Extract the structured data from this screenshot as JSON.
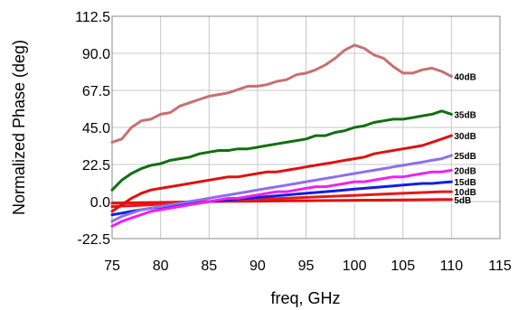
{
  "chart_data": {
    "type": "line",
    "title": "",
    "xlabel": "freq, GHz",
    "ylabel": "Normalized Phase (deg)",
    "xlim": [
      75,
      115
    ],
    "ylim": [
      -22.5,
      112.5
    ],
    "xticks": [
      "75",
      "80",
      "85",
      "90",
      "95",
      "100",
      "105",
      "110",
      "115"
    ],
    "yticks": [
      "-22.5",
      "0.0",
      "22.5",
      "45.0",
      "67.5",
      "90.0",
      "112.5"
    ],
    "grid": true,
    "series": [
      {
        "name": "40dB",
        "color": "#c87070",
        "points": [
          [
            75,
            36
          ],
          [
            76,
            38
          ],
          [
            77,
            45
          ],
          [
            78,
            49
          ],
          [
            79,
            50
          ],
          [
            80,
            53
          ],
          [
            81,
            54
          ],
          [
            82,
            58
          ],
          [
            83,
            60
          ],
          [
            84,
            62
          ],
          [
            85,
            64
          ],
          [
            86,
            65
          ],
          [
            87,
            66
          ],
          [
            88,
            68
          ],
          [
            89,
            70
          ],
          [
            90,
            70
          ],
          [
            91,
            71
          ],
          [
            92,
            73
          ],
          [
            93,
            74
          ],
          [
            94,
            77
          ],
          [
            95,
            78
          ],
          [
            96,
            80
          ],
          [
            97,
            83
          ],
          [
            98,
            87
          ],
          [
            99,
            92
          ],
          [
            100,
            95
          ],
          [
            101,
            93
          ],
          [
            102,
            89
          ],
          [
            103,
            87
          ],
          [
            104,
            82
          ],
          [
            105,
            78
          ],
          [
            106,
            78
          ],
          [
            107,
            80
          ],
          [
            108,
            81
          ],
          [
            109,
            79
          ],
          [
            110,
            76
          ]
        ]
      },
      {
        "name": "35dB",
        "color": "#107010",
        "points": [
          [
            75,
            7
          ],
          [
            76,
            13
          ],
          [
            77,
            17
          ],
          [
            78,
            20
          ],
          [
            79,
            22
          ],
          [
            80,
            23
          ],
          [
            81,
            25
          ],
          [
            82,
            26
          ],
          [
            83,
            27
          ],
          [
            84,
            29
          ],
          [
            85,
            30
          ],
          [
            86,
            31
          ],
          [
            87,
            31
          ],
          [
            88,
            32
          ],
          [
            89,
            32
          ],
          [
            90,
            33
          ],
          [
            91,
            34
          ],
          [
            92,
            35
          ],
          [
            93,
            36
          ],
          [
            94,
            37
          ],
          [
            95,
            38
          ],
          [
            96,
            40
          ],
          [
            97,
            40
          ],
          [
            98,
            42
          ],
          [
            99,
            43
          ],
          [
            100,
            45
          ],
          [
            101,
            46
          ],
          [
            102,
            48
          ],
          [
            103,
            49
          ],
          [
            104,
            50
          ],
          [
            105,
            50
          ],
          [
            106,
            51
          ],
          [
            107,
            52
          ],
          [
            108,
            53
          ],
          [
            109,
            55
          ],
          [
            110,
            53
          ]
        ]
      },
      {
        "name": "30dB",
        "color": "#e01010",
        "points": [
          [
            75,
            -6
          ],
          [
            76,
            -2
          ],
          [
            77,
            2
          ],
          [
            78,
            5
          ],
          [
            79,
            7
          ],
          [
            80,
            8
          ],
          [
            81,
            9
          ],
          [
            82,
            10
          ],
          [
            83,
            11
          ],
          [
            84,
            12
          ],
          [
            85,
            13
          ],
          [
            86,
            14
          ],
          [
            87,
            15
          ],
          [
            88,
            15
          ],
          [
            89,
            16
          ],
          [
            90,
            17
          ],
          [
            91,
            18
          ],
          [
            92,
            18
          ],
          [
            93,
            19
          ],
          [
            94,
            20
          ],
          [
            95,
            21
          ],
          [
            96,
            22
          ],
          [
            97,
            23
          ],
          [
            98,
            24
          ],
          [
            99,
            25
          ],
          [
            100,
            26
          ],
          [
            101,
            27
          ],
          [
            102,
            29
          ],
          [
            103,
            30
          ],
          [
            104,
            31
          ],
          [
            105,
            32
          ],
          [
            106,
            33
          ],
          [
            107,
            34
          ],
          [
            108,
            36
          ],
          [
            109,
            38
          ],
          [
            110,
            40
          ]
        ]
      },
      {
        "name": "25dB",
        "color": "#8c6ff0",
        "points": [
          [
            75,
            -12
          ],
          [
            76,
            -9
          ],
          [
            77,
            -7
          ],
          [
            78,
            -5
          ],
          [
            79,
            -4
          ],
          [
            80,
            -3
          ],
          [
            81,
            -2
          ],
          [
            82,
            -1
          ],
          [
            83,
            0
          ],
          [
            84,
            1
          ],
          [
            85,
            2
          ],
          [
            86,
            3
          ],
          [
            87,
            4
          ],
          [
            88,
            5
          ],
          [
            89,
            6
          ],
          [
            90,
            7
          ],
          [
            91,
            8
          ],
          [
            92,
            9
          ],
          [
            93,
            10
          ],
          [
            94,
            11
          ],
          [
            95,
            12
          ],
          [
            96,
            13
          ],
          [
            97,
            14
          ],
          [
            98,
            15
          ],
          [
            99,
            16
          ],
          [
            100,
            17
          ],
          [
            101,
            18
          ],
          [
            102,
            19
          ],
          [
            103,
            20
          ],
          [
            104,
            21
          ],
          [
            105,
            22
          ],
          [
            106,
            23
          ],
          [
            107,
            24
          ],
          [
            108,
            25
          ],
          [
            109,
            26
          ],
          [
            110,
            28
          ]
        ]
      },
      {
        "name": "20dB",
        "color": "#f020f0",
        "points": [
          [
            75,
            -15
          ],
          [
            76,
            -12
          ],
          [
            77,
            -10
          ],
          [
            78,
            -8
          ],
          [
            79,
            -6
          ],
          [
            80,
            -5
          ],
          [
            81,
            -4
          ],
          [
            82,
            -3
          ],
          [
            83,
            -2
          ],
          [
            84,
            -1
          ],
          [
            85,
            0
          ],
          [
            86,
            1
          ],
          [
            87,
            2
          ],
          [
            88,
            2
          ],
          [
            89,
            3
          ],
          [
            90,
            4
          ],
          [
            91,
            5
          ],
          [
            92,
            6
          ],
          [
            93,
            6
          ],
          [
            94,
            7
          ],
          [
            95,
            8
          ],
          [
            96,
            9
          ],
          [
            97,
            9
          ],
          [
            98,
            10
          ],
          [
            99,
            11
          ],
          [
            100,
            12
          ],
          [
            101,
            12
          ],
          [
            102,
            13
          ],
          [
            103,
            14
          ],
          [
            104,
            15
          ],
          [
            105,
            15
          ],
          [
            106,
            16
          ],
          [
            107,
            17
          ],
          [
            108,
            18
          ],
          [
            109,
            18
          ],
          [
            110,
            19
          ]
        ]
      },
      {
        "name": "15dB",
        "color": "#1020e0",
        "points": [
          [
            75,
            -8
          ],
          [
            76,
            -7
          ],
          [
            77,
            -6
          ],
          [
            78,
            -5
          ],
          [
            79,
            -4
          ],
          [
            80,
            -3.5
          ],
          [
            81,
            -3
          ],
          [
            82,
            -2
          ],
          [
            83,
            -1.5
          ],
          [
            84,
            -1
          ],
          [
            85,
            0
          ],
          [
            86,
            0.5
          ],
          [
            87,
            1
          ],
          [
            88,
            1.5
          ],
          [
            89,
            2
          ],
          [
            90,
            2.5
          ],
          [
            91,
            3
          ],
          [
            92,
            3.5
          ],
          [
            93,
            4
          ],
          [
            94,
            4.5
          ],
          [
            95,
            5
          ],
          [
            96,
            5.5
          ],
          [
            97,
            6
          ],
          [
            98,
            6.5
          ],
          [
            99,
            7
          ],
          [
            100,
            7.5
          ],
          [
            101,
            8
          ],
          [
            102,
            8.5
          ],
          [
            103,
            9
          ],
          [
            104,
            9.5
          ],
          [
            105,
            10
          ],
          [
            106,
            10.5
          ],
          [
            107,
            11
          ],
          [
            108,
            11
          ],
          [
            109,
            11.5
          ],
          [
            110,
            12
          ]
        ]
      },
      {
        "name": "10dB",
        "color": "#e81818",
        "points": [
          [
            75,
            -3
          ],
          [
            77,
            -2.5
          ],
          [
            79,
            -2
          ],
          [
            81,
            -1
          ],
          [
            83,
            -0.5
          ],
          [
            85,
            0
          ],
          [
            87,
            0.5
          ],
          [
            89,
            1
          ],
          [
            91,
            1.5
          ],
          [
            93,
            2
          ],
          [
            95,
            2.5
          ],
          [
            97,
            3
          ],
          [
            99,
            3.5
          ],
          [
            101,
            4
          ],
          [
            103,
            4.5
          ],
          [
            105,
            5
          ],
          [
            107,
            5.5
          ],
          [
            109,
            6
          ],
          [
            110,
            6
          ]
        ]
      },
      {
        "name": "5dB",
        "color": "#e01010",
        "points": [
          [
            75,
            -1
          ],
          [
            77,
            -0.8
          ],
          [
            79,
            -0.6
          ],
          [
            81,
            -0.4
          ],
          [
            83,
            -0.2
          ],
          [
            85,
            0
          ],
          [
            87,
            0.1
          ],
          [
            89,
            0.2
          ],
          [
            91,
            0.3
          ],
          [
            93,
            0.4
          ],
          [
            95,
            0.5
          ],
          [
            97,
            0.6
          ],
          [
            99,
            0.7
          ],
          [
            101,
            0.8
          ],
          [
            103,
            0.9
          ],
          [
            105,
            1.0
          ],
          [
            107,
            1.1
          ],
          [
            109,
            1.2
          ],
          [
            110,
            1.2
          ]
        ]
      }
    ]
  }
}
